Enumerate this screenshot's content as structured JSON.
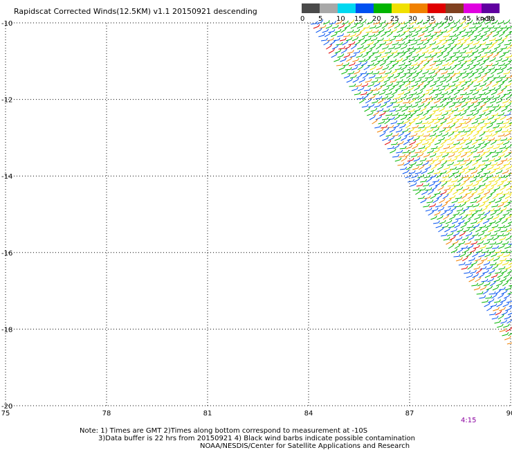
{
  "title": "Rapidscat Corrected Winds(12.5KM) v1.1 20150921 descending",
  "legend": {
    "unit": "knots",
    "bins": [
      {
        "label": "0",
        "color": "#4a4a4a"
      },
      {
        "label": "5",
        "color": "#a8a8a8"
      },
      {
        "label": "10",
        "color": "#00d8f0"
      },
      {
        "label": "15",
        "color": "#0050f0"
      },
      {
        "label": "20",
        "color": "#00b400"
      },
      {
        "label": "25",
        "color": "#f0e000"
      },
      {
        "label": "30",
        "color": "#f08000"
      },
      {
        "label": "35",
        "color": "#e00000"
      },
      {
        "label": "40",
        "color": "#804020"
      },
      {
        "label": "45",
        "color": "#e000e0"
      },
      {
        "label": ">50",
        "color": "#6000a0"
      }
    ]
  },
  "axes": {
    "x_ticks": [
      "75",
      "78",
      "81",
      "84",
      "87",
      "90"
    ],
    "y_ticks": [
      "-10",
      "-12",
      "-14",
      "-16",
      "-18",
      "-20"
    ],
    "x_range": [
      75,
      90
    ],
    "y_range": [
      -20,
      -10
    ]
  },
  "time_label": "4:15",
  "notes": {
    "line1": "Note: 1) Times are GMT 2)Times along bottom correspond to measurement at -10S",
    "line2": "3)Data buffer is 22 hrs from 20150921 4) Black wind barbs indicate possible contamination",
    "line3": "NOAA/NESDIS/Center for Satellite Applications and Research"
  },
  "swath": {
    "polygon_lonlat": [
      [
        84.0,
        -10.0
      ],
      [
        90.0,
        -10.0
      ],
      [
        90.0,
        -18.6
      ]
    ],
    "dominant_colors": [
      "#00b400",
      "#f0e000",
      "#0050f0",
      "#f08000",
      "#e00000"
    ]
  }
}
